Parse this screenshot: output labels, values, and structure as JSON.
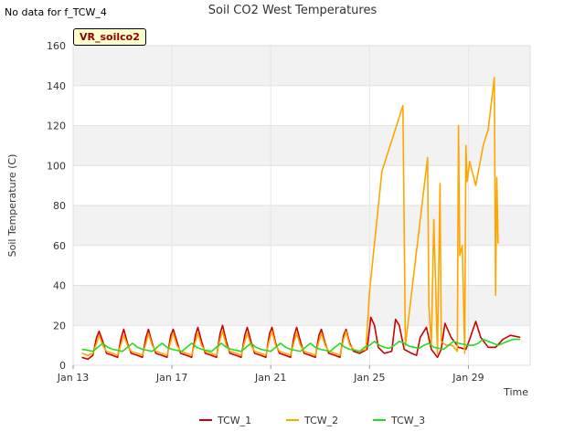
{
  "no_data_note": "No data for f_TCW_4",
  "badge": "VR_soilco2",
  "chart_data": {
    "type": "line",
    "title": "Soil CO2 West Temperatures",
    "xlabel": "Time",
    "ylabel": "Soil Temperature (C)",
    "xlim": [
      13,
      31.5
    ],
    "ylim": [
      0,
      160
    ],
    "y_ticks": [
      0,
      20,
      40,
      60,
      80,
      100,
      120,
      140,
      160
    ],
    "x_ticks": [
      {
        "value": 13,
        "label": "Jan 13"
      },
      {
        "value": 17,
        "label": "Jan 17"
      },
      {
        "value": 21,
        "label": "Jan 21"
      },
      {
        "value": 25,
        "label": "Jan 25"
      },
      {
        "value": 29,
        "label": "Jan 29"
      }
    ],
    "grid": true,
    "legend_position": "bottom-center",
    "series": [
      {
        "name": "TCW_1",
        "color": "#cc0000",
        "x": [
          13.35,
          13.6,
          13.8,
          13.95,
          14.05,
          14.2,
          14.35,
          14.6,
          14.8,
          14.95,
          15.05,
          15.2,
          15.35,
          15.6,
          15.8,
          15.95,
          16.05,
          16.2,
          16.35,
          16.6,
          16.8,
          16.95,
          17.05,
          17.2,
          17.35,
          17.6,
          17.8,
          17.95,
          18.05,
          18.2,
          18.35,
          18.6,
          18.8,
          18.95,
          19.05,
          19.2,
          19.35,
          19.6,
          19.8,
          19.95,
          20.05,
          20.2,
          20.35,
          20.6,
          20.8,
          20.95,
          21.05,
          21.2,
          21.35,
          21.6,
          21.8,
          21.95,
          22.05,
          22.2,
          22.35,
          22.6,
          22.8,
          22.95,
          23.05,
          23.2,
          23.35,
          23.6,
          23.8,
          23.95,
          24.05,
          24.2,
          24.35,
          24.6,
          24.9,
          25.05,
          25.2,
          25.35,
          25.6,
          25.9,
          26.05,
          26.2,
          26.4,
          26.7,
          26.9,
          27.05,
          27.3,
          27.5,
          27.75,
          27.9,
          28.05,
          28.3,
          28.6,
          28.9,
          29.05,
          29.3,
          29.5,
          29.8,
          30.1,
          30.4,
          30.7,
          31.1
        ],
        "y": [
          4,
          3,
          5,
          14,
          17,
          12,
          6,
          5,
          4,
          14,
          18,
          11,
          6,
          5,
          4,
          14,
          18,
          11,
          6,
          5,
          4,
          15,
          18,
          12,
          6,
          5,
          4,
          15,
          19,
          12,
          6,
          5,
          4,
          16,
          20,
          12,
          6,
          5,
          4,
          15,
          19,
          12,
          6,
          5,
          4,
          16,
          19,
          11,
          6,
          5,
          4,
          15,
          19,
          12,
          6,
          5,
          4,
          15,
          18,
          11,
          6,
          5,
          4,
          15,
          18,
          11,
          7,
          6,
          8,
          24,
          20,
          9,
          6,
          7,
          23,
          20,
          8,
          6,
          5,
          14,
          19,
          8,
          4,
          8,
          21,
          14,
          9,
          8,
          13,
          22,
          14,
          9,
          9,
          13,
          15,
          14
        ]
      },
      {
        "name": "TCW_2",
        "color": "#ffa500",
        "x": [
          13.35,
          13.6,
          13.8,
          13.95,
          14.05,
          14.2,
          14.35,
          14.6,
          14.8,
          14.95,
          15.05,
          15.2,
          15.35,
          15.6,
          15.8,
          15.95,
          16.05,
          16.2,
          16.35,
          16.6,
          16.8,
          16.95,
          17.05,
          17.2,
          17.35,
          17.6,
          17.8,
          17.95,
          18.05,
          18.2,
          18.35,
          18.6,
          18.8,
          18.95,
          19.05,
          19.2,
          19.35,
          19.6,
          19.8,
          19.95,
          20.05,
          20.2,
          20.35,
          20.6,
          20.8,
          20.95,
          21.05,
          21.2,
          21.35,
          21.6,
          21.8,
          21.95,
          22.05,
          22.2,
          22.35,
          22.6,
          22.8,
          22.95,
          23.05,
          23.2,
          23.35,
          23.6,
          23.8,
          23.95,
          24.05,
          24.2,
          24.35,
          24.6,
          24.85,
          25,
          25.5,
          26.35,
          26.45,
          27.35,
          27.4,
          27.5,
          27.6,
          27.75,
          27.85,
          27.9,
          28.1,
          28.35,
          28.55,
          28.6,
          28.65,
          28.75,
          28.85,
          28.9,
          28.95,
          29.05,
          29.3,
          29.6,
          29.8,
          30.05,
          30.1,
          30.15,
          30.2
        ],
        "y": [
          6,
          5,
          6,
          11,
          15,
          10,
          7,
          6,
          5,
          11,
          15,
          10,
          7,
          6,
          5,
          11,
          16,
          10,
          7,
          6,
          5,
          12,
          16,
          10,
          7,
          6,
          5,
          12,
          16,
          10,
          7,
          6,
          5,
          13,
          17,
          10,
          7,
          6,
          5,
          12,
          16,
          10,
          7,
          6,
          5,
          13,
          17,
          10,
          7,
          6,
          5,
          12,
          16,
          10,
          7,
          6,
          5,
          12,
          16,
          10,
          7,
          6,
          5,
          13,
          17,
          10,
          8,
          7,
          8,
          37,
          97,
          130,
          10,
          104,
          30,
          10,
          73,
          6,
          91,
          12,
          10,
          10,
          7,
          120,
          55,
          60,
          6,
          110,
          92,
          102,
          90,
          110,
          118,
          144,
          35,
          94,
          61
        ]
      },
      {
        "name": "TCW_3",
        "color": "#22dd22",
        "x": [
          13.35,
          13.6,
          13.8,
          14,
          14.2,
          14.4,
          14.6,
          14.8,
          15,
          15.2,
          15.4,
          15.6,
          15.8,
          16,
          16.2,
          16.4,
          16.6,
          16.8,
          17,
          17.2,
          17.4,
          17.6,
          17.8,
          18,
          18.2,
          18.4,
          18.6,
          18.8,
          19,
          19.2,
          19.4,
          19.6,
          19.8,
          20,
          20.2,
          20.4,
          20.6,
          20.8,
          21,
          21.2,
          21.4,
          21.6,
          21.8,
          22,
          22.2,
          22.4,
          22.6,
          22.8,
          23,
          23.2,
          23.4,
          23.6,
          23.8,
          24,
          24.2,
          24.4,
          24.6,
          24.8,
          25,
          25.2,
          25.4,
          25.6,
          25.8,
          26,
          26.2,
          26.4,
          26.6,
          26.8,
          27,
          27.2,
          27.4,
          27.6,
          27.8,
          28,
          28.2,
          28.4,
          28.6,
          28.8,
          29,
          29.2,
          29.4,
          29.6,
          29.8,
          30,
          30.2,
          30.4,
          30.6,
          30.8,
          31.1
        ],
        "y": [
          8,
          7.5,
          7,
          9,
          11,
          9,
          8,
          7.5,
          7,
          9,
          11,
          9,
          8,
          7.5,
          7,
          9,
          11,
          9,
          8,
          7.5,
          7,
          9,
          11,
          9,
          8,
          7.5,
          7,
          9,
          11,
          9,
          8,
          7.5,
          7,
          9,
          11,
          9,
          8,
          7.5,
          7,
          9,
          11,
          9,
          8,
          7.5,
          7,
          9,
          11,
          9,
          8,
          7.5,
          7,
          9,
          11,
          9,
          8,
          7.5,
          7,
          9,
          10,
          12,
          10,
          9,
          8.5,
          10,
          12,
          11,
          9.5,
          9,
          8.5,
          10,
          11,
          9,
          8.5,
          8,
          10,
          12,
          11,
          10.5,
          10,
          10,
          11,
          13,
          12,
          11,
          10,
          11,
          12,
          13,
          13
        ]
      }
    ]
  }
}
